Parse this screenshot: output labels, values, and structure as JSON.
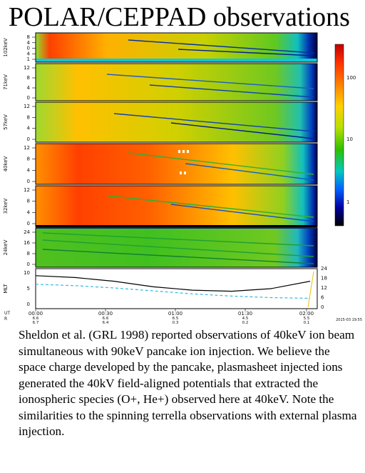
{
  "title": "POLAR/CEPPAD observations",
  "caption": "Sheldon et al. (GRL 1998) reported observations of 40keV ion beam simultaneous with 90keV pancake ion injection. We believe the space charge developed by the pancake, plasmasheet injected ions generated the 40kV field-aligned potentials that extracted the ionospheric species (O+, He+) observed here at 40keV. Note the similarities to the spinning terrella observations with external plasma injection.",
  "chart_data": {
    "type": "heatmap",
    "x_axis": {
      "ticks": [
        "00:00",
        "00:30",
        "01:00",
        "01:30",
        "02:00"
      ],
      "sublabels": [
        [
          "6.6",
          "6.7"
        ],
        [
          "6.6",
          "6.4"
        ],
        [
          "6.5",
          "0.3"
        ],
        [
          "4.5",
          "0.2"
        ],
        [
          "5.5",
          "0.1"
        ]
      ],
      "row_labels": [
        "UT",
        "R"
      ]
    },
    "panels": [
      {
        "label": "102keV",
        "ticks": [
          "8",
          "4",
          "0",
          "4",
          "1"
        ]
      },
      {
        "label": "71keV",
        "ticks": [
          "12",
          "8",
          "4",
          "0"
        ]
      },
      {
        "label": "57keV",
        "ticks": [
          "12",
          "8",
          "4",
          "0"
        ]
      },
      {
        "label": "40keV",
        "ticks": [
          "12",
          "8",
          "4",
          "0"
        ]
      },
      {
        "label": "32keV",
        "ticks": [
          "12",
          "8",
          "4",
          "0"
        ]
      },
      {
        "label": "24keV",
        "ticks": [
          "24",
          "16",
          "8",
          "0"
        ]
      }
    ],
    "colorbar": {
      "ticks": [
        "100",
        "10",
        "1"
      ],
      "colors": [
        "#c00000",
        "#ff3000",
        "#ff8000",
        "#ffd000",
        "#b8e000",
        "#30c000",
        "#00c8c0",
        "#0060ff",
        "#0000a0",
        "#000000"
      ]
    },
    "line_panel": {
      "left_label": "MLT",
      "left_ticks": [
        "10",
        "5",
        "0"
      ],
      "right_ticks": [
        "24",
        "18",
        "12",
        "6",
        "0"
      ],
      "series": [
        {
          "color": "#000000",
          "values": [
            8.5,
            8.0,
            7.0,
            5.5,
            4.6,
            4.3,
            5.0,
            7.0
          ]
        },
        {
          "color": "#30b8e0",
          "values": [
            6.2,
            5.8,
            5.2,
            4.4,
            3.6,
            3.0,
            2.6,
            2.4
          ]
        }
      ]
    },
    "stamp": "2015-03 19:55"
  }
}
